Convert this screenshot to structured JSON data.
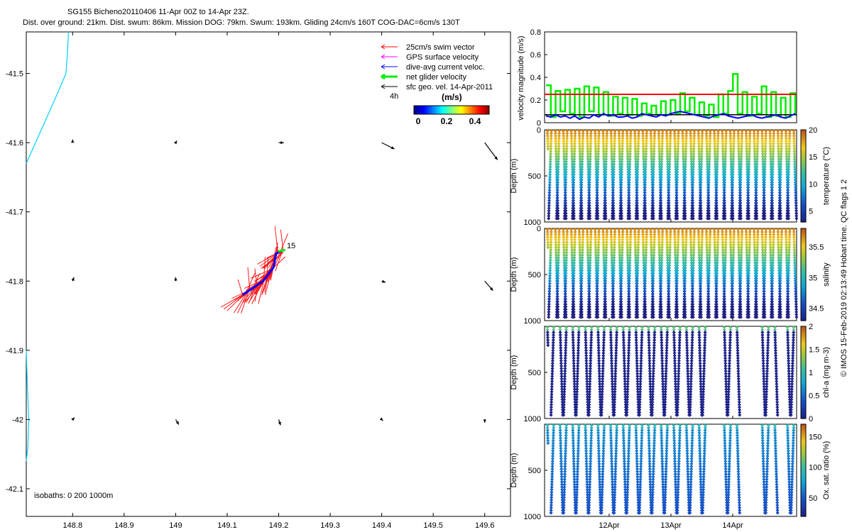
{
  "header": {
    "line1": "SG155 Bicheno20110406 11-Apr 00Z to 14-Apr 23Z.",
    "line2": "Dist. over ground: 21km. Dist. swum: 86km. Mission DOG: 79km. Swum: 193km. Gliding 24cm/s 160T COG-DAC=6cm/s 130T"
  },
  "map": {
    "xticks": [
      "148.8",
      "148.9",
      "149",
      "149.1",
      "149.2",
      "149.3",
      "149.4",
      "149.5",
      "149.6"
    ],
    "yticks": [
      "-41.5",
      "-41.6",
      "-41.7",
      "-41.8",
      "-41.9",
      "-42",
      "-42.1"
    ],
    "xlim": [
      148.71,
      149.65
    ],
    "ylim": [
      -42.14,
      -41.44
    ],
    "isobaths_label": "isobaths: 0   200  1000m",
    "end_label": "15",
    "legend": {
      "items": [
        {
          "label": "25cm/s swim vector",
          "color": "#ff0000"
        },
        {
          "label": "GPS surface velocity",
          "color": "#ff00ff"
        },
        {
          "label": "dive-avg current veloc.",
          "color": "#0000ff"
        },
        {
          "label": "net glider velocity",
          "color": "#00ee00"
        },
        {
          "label": "sfc geo. vel. 14-Apr-2011",
          "color": "#000000"
        }
      ],
      "time_label": "4h",
      "colorbar_title": "(m/s)",
      "colorbar_ticks": [
        "0",
        "0.2",
        "0.4"
      ],
      "colorbar_range": [
        -0.03,
        0.5
      ]
    },
    "geo_vectors": [
      {
        "lon": 148.8,
        "lat": -41.6,
        "u": 0.0,
        "v": 0.05
      },
      {
        "lon": 149.0,
        "lat": -41.6,
        "u": 0.02,
        "v": 0.03
      },
      {
        "lon": 149.2,
        "lat": -41.6,
        "u": 0.08,
        "v": 0.0
      },
      {
        "lon": 149.4,
        "lat": -41.6,
        "u": 0.2,
        "v": -0.1
      },
      {
        "lon": 149.6,
        "lat": -41.6,
        "u": 0.2,
        "v": -0.27
      },
      {
        "lon": 148.8,
        "lat": -41.8,
        "u": 0.02,
        "v": 0.06
      },
      {
        "lon": 149.0,
        "lat": -41.8,
        "u": 0.0,
        "v": 0.06
      },
      {
        "lon": 149.4,
        "lat": -41.8,
        "u": 0.06,
        "v": -0.02
      },
      {
        "lon": 149.6,
        "lat": -41.8,
        "u": 0.13,
        "v": -0.15
      },
      {
        "lon": 148.8,
        "lat": -42.0,
        "u": 0.03,
        "v": 0.03
      },
      {
        "lon": 149.0,
        "lat": -42.0,
        "u": 0.05,
        "v": -0.08
      },
      {
        "lon": 149.2,
        "lat": -42.0,
        "u": 0.03,
        "v": -0.09
      },
      {
        "lon": 149.4,
        "lat": -42.0,
        "u": 0.02,
        "v": -0.02
      },
      {
        "lon": 149.6,
        "lat": -42.0,
        "u": 0.0,
        "v": -0.05
      }
    ],
    "coastlines": [
      [
        [
          148.71,
          -41.63
        ],
        [
          148.74,
          -41.58
        ],
        [
          148.77,
          -41.53
        ],
        [
          148.787,
          -41.5
        ],
        [
          148.79,
          -41.47
        ],
        [
          148.792,
          -41.44
        ]
      ],
      [
        [
          148.71,
          -41.9
        ],
        [
          148.712,
          -41.95
        ],
        [
          148.715,
          -42.0
        ],
        [
          148.713,
          -42.04
        ],
        [
          148.71,
          -42.06
        ]
      ]
    ],
    "track": [
      [
        149.13,
        -41.82
      ],
      [
        149.15,
        -41.81
      ],
      [
        149.17,
        -41.8
      ],
      [
        149.18,
        -41.79
      ],
      [
        149.19,
        -41.78
      ],
      [
        149.195,
        -41.76
      ],
      [
        149.21,
        -41.755
      ]
    ]
  },
  "velocity_panel": {
    "ylabel": "velocity magnitude (m/s)",
    "yticks": [
      "0",
      "0.2",
      "0.4",
      "0.6",
      "0.8"
    ],
    "ylim": [
      0,
      0.8
    ],
    "red_line": 0.25,
    "black_line": 0.07,
    "green_values": [
      0.33,
      0.05,
      0.28,
      0.1,
      0.29,
      0.08,
      0.3,
      0.05,
      0.32,
      0.1,
      0.31,
      0.07,
      0.27,
      0.06,
      0.23,
      0.08,
      0.22,
      0.07,
      0.21,
      0.06,
      0.17,
      0.08,
      0.15,
      0.07,
      0.19,
      0.07,
      0.2,
      0.08,
      0.26,
      0.1,
      0.22,
      0.07,
      0.18,
      0.06,
      0.16,
      0.05,
      0.25,
      0.08,
      0.28,
      0.43,
      0.08,
      0.27,
      0.06,
      0.23,
      0.08,
      0.32,
      0.05,
      0.27,
      0.06,
      0.22,
      0.05,
      0.26,
      0.07
    ],
    "blue_values": [
      0.06,
      0.05,
      0.07,
      0.05,
      0.06,
      0.04,
      0.06,
      0.03,
      0.05,
      0.04,
      0.07,
      0.05,
      0.08,
      0.06,
      0.07,
      0.05,
      0.05,
      0.06,
      0.04,
      0.05,
      0.08,
      0.07,
      0.06,
      0.05,
      0.07,
      0.06,
      0.08,
      0.09,
      0.1,
      0.09,
      0.08,
      0.07,
      0.06,
      0.05,
      0.04,
      0.06,
      0.07,
      0.08,
      0.06,
      0.05,
      0.04,
      0.05,
      0.06,
      0.07,
      0.05,
      0.04,
      0.05,
      0.06,
      0.07,
      0.05,
      0.04,
      0.06,
      0.08
    ]
  },
  "profile_panels": [
    {
      "id": "temperature",
      "ylabel": "Depth (m)",
      "yticks": [
        "0",
        "500",
        "1000"
      ],
      "cbar_label": "temperature (°C)",
      "cbar_ticks": [
        "5",
        "10",
        "15",
        "20"
      ],
      "cbar_range": [
        3,
        20
      ],
      "casts": 63,
      "dives_full": true,
      "variable": "temperature"
    },
    {
      "id": "salinity",
      "ylabel": "Depth (m)",
      "yticks": [
        "0",
        "500",
        "1000"
      ],
      "cbar_label": "salinity",
      "cbar_ticks": [
        "34.5",
        "35",
        "35.5"
      ],
      "cbar_range": [
        34.3,
        35.8
      ],
      "casts": 63,
      "dives_full": true,
      "variable": "salinity"
    },
    {
      "id": "chla",
      "ylabel": "Depth (m)",
      "yticks": [
        "500",
        "1000"
      ],
      "cbar_label": "chl-a (mg m-3)",
      "cbar_ticks": [
        "0",
        "0.5",
        "1",
        "1.5",
        "2"
      ],
      "cbar_range": [
        0,
        2
      ],
      "casts": 40,
      "dives_full": false,
      "variable": "chla"
    },
    {
      "id": "oxygen",
      "ylabel": "Depth (m)",
      "yticks": [
        "500",
        "1000"
      ],
      "cbar_label": "Ox. sat. ratio (%)",
      "cbar_ticks": [
        "50",
        "100",
        "150"
      ],
      "cbar_range": [
        20,
        170
      ],
      "casts": 40,
      "dives_full": false,
      "variable": "oxygen"
    }
  ],
  "time_axis": [
    "12Apr",
    "13Apr",
    "14Apr"
  ],
  "credit": "© IMOS 15-Feb-2019 02:13:49 Hobart time. QC flags 1  2"
}
